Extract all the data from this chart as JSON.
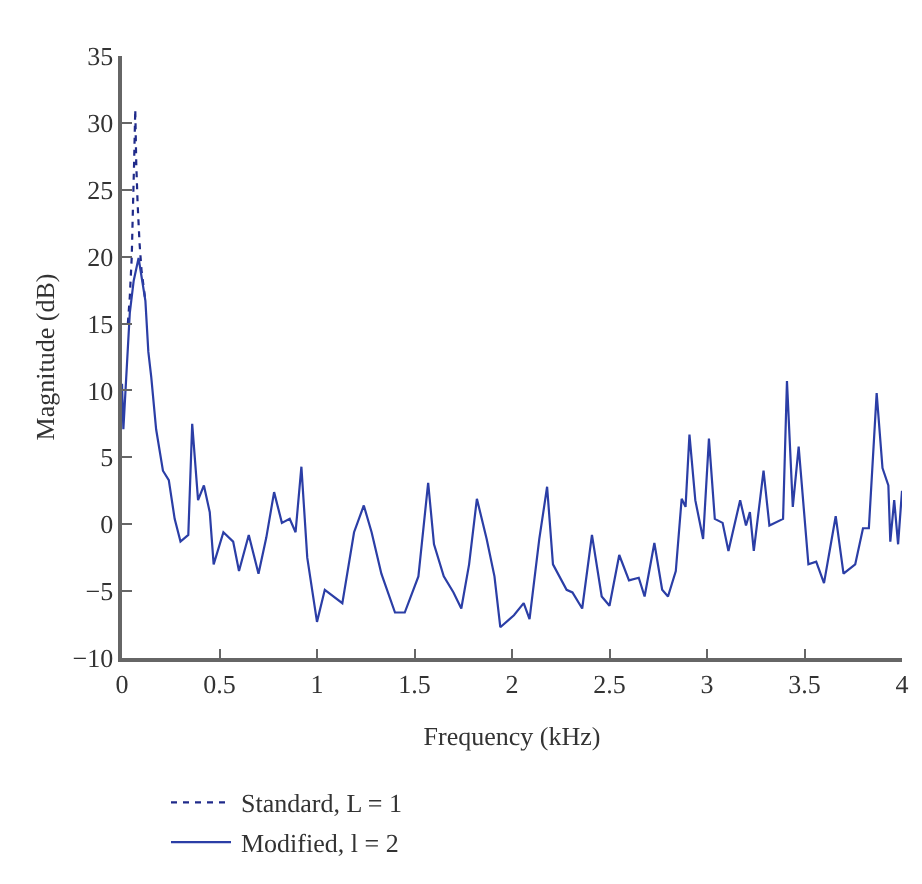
{
  "chart_data": {
    "type": "line",
    "xlabel": "Frequency (kHz)",
    "ylabel": "Magnitude (dB)",
    "xlim": [
      0,
      4
    ],
    "xticks": [
      0,
      0.5,
      1,
      1.5,
      2,
      2.5,
      3,
      3.5,
      4
    ],
    "ylim": [
      -10,
      35
    ],
    "yticks": [
      {
        "value": -10,
        "label": "−10"
      },
      {
        "value": -5,
        "label": "−5"
      },
      0,
      5,
      10,
      15,
      20,
      25,
      30,
      35
    ],
    "legend": "bottom",
    "marker": "none",
    "series": [
      {
        "name": "Standard, L = 1",
        "color": "#1f2a8a",
        "line_style": "dotted",
        "x": [
          0.03,
          0.04,
          0.05,
          0.055,
          0.062,
          0.068,
          0.073,
          0.08,
          0.09,
          0.1,
          0.12
        ],
        "values": [
          15,
          17,
          20,
          23,
          27,
          31,
          27,
          24,
          21,
          19,
          16.7
        ]
      },
      {
        "name": "Modified, l = 2",
        "color": "#2b3ea6",
        "line_style": "solid",
        "x": [
          0,
          0.007,
          0.04,
          0.06,
          0.085,
          0.12,
          0.135,
          0.15,
          0.175,
          0.21,
          0.24,
          0.27,
          0.3,
          0.34,
          0.36,
          0.39,
          0.42,
          0.45,
          0.47,
          0.52,
          0.57,
          0.6,
          0.65,
          0.7,
          0.74,
          0.78,
          0.82,
          0.86,
          0.89,
          0.92,
          0.95,
          1.0,
          1.04,
          1.13,
          1.19,
          1.24,
          1.28,
          1.33,
          1.4,
          1.45,
          1.52,
          1.53,
          1.57,
          1.6,
          1.65,
          1.7,
          1.74,
          1.78,
          1.82,
          1.87,
          1.91,
          1.94,
          2.01,
          2.06,
          2.09,
          2.14,
          2.18,
          2.21,
          2.28,
          2.31,
          2.36,
          2.41,
          2.46,
          2.5,
          2.55,
          2.6,
          2.65,
          2.68,
          2.73,
          2.77,
          2.8,
          2.84,
          2.87,
          2.89,
          2.91,
          2.94,
          2.98,
          3.01,
          3.04,
          3.08,
          3.11,
          3.17,
          3.2,
          3.22,
          3.24,
          3.29,
          3.32,
          3.39,
          3.41,
          3.44,
          3.47,
          3.52,
          3.56,
          3.6,
          3.66,
          3.7,
          3.76,
          3.8,
          3.83,
          3.87,
          3.9,
          3.93,
          3.94,
          3.96,
          3.98,
          4.0
        ],
        "values": [
          10.5,
          7.1,
          15.8,
          18.2,
          19.9,
          16.7,
          12.9,
          11,
          7.1,
          4,
          3.3,
          0.4,
          -1.3,
          -0.8,
          7.5,
          1.8,
          2.9,
          0.9,
          -3,
          -0.6,
          -1.3,
          -3.5,
          -0.8,
          -3.7,
          -1,
          2.4,
          0.1,
          0.4,
          -0.6,
          4.3,
          -2.5,
          -7.3,
          -4.9,
          -5.9,
          -0.6,
          1.4,
          -0.6,
          -3.7,
          -6.6,
          -6.6,
          -3.9,
          -2.5,
          3.1,
          -1.5,
          -3.9,
          -5.1,
          -6.3,
          -3,
          1.9,
          -1.1,
          -3.9,
          -7.7,
          -6.8,
          -5.9,
          -7.1,
          -1.1,
          2.8,
          -3,
          -4.9,
          -5.1,
          -6.3,
          -0.8,
          -5.4,
          -6.1,
          -2.3,
          -4.2,
          -4,
          -5.4,
          -1.4,
          -4.9,
          -5.4,
          -3.5,
          1.9,
          1.3,
          6.7,
          1.8,
          -1.1,
          6.4,
          0.4,
          0.1,
          -2,
          1.8,
          -0.1,
          0.9,
          -2,
          4,
          -0.1,
          0.4,
          10.7,
          1.3,
          5.8,
          -3,
          -2.8,
          -4.4,
          0.6,
          -3.7,
          -3,
          -0.3,
          -0.3,
          9.8,
          4.2,
          2.9,
          -1.3,
          1.8,
          -1.5,
          2.5
        ]
      }
    ]
  }
}
